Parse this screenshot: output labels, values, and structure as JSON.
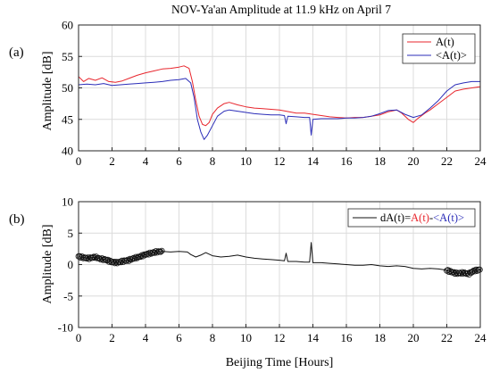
{
  "chart_data": {
    "title": "NOV-Ya'an Amplitude at 11.9 kHz on April 7",
    "xlabel": "Beijing Time [Hours]",
    "panels": [
      {
        "tag": "(a)",
        "type": "line",
        "ylabel": "Amplitude [dB]",
        "xlim": [
          0,
          24
        ],
        "ylim": [
          40,
          60
        ],
        "xticks": [
          0,
          2,
          4,
          6,
          8,
          10,
          12,
          14,
          16,
          18,
          20,
          22,
          24
        ],
        "yticks": [
          40,
          45,
          50,
          55,
          60
        ],
        "grid": true,
        "legend_position": "top-right",
        "series": [
          {
            "name": "A(t)",
            "color": "#e8262d",
            "points": [
              [
                0,
                51.8
              ],
              [
                0.3,
                51.0
              ],
              [
                0.6,
                51.5
              ],
              [
                1.0,
                51.2
              ],
              [
                1.4,
                51.6
              ],
              [
                1.8,
                51.0
              ],
              [
                2.2,
                50.9
              ],
              [
                2.6,
                51.1
              ],
              [
                3.0,
                51.5
              ],
              [
                3.5,
                52.0
              ],
              [
                4.0,
                52.4
              ],
              [
                4.5,
                52.7
              ],
              [
                5.0,
                53.0
              ],
              [
                5.5,
                53.1
              ],
              [
                6.0,
                53.3
              ],
              [
                6.3,
                53.5
              ],
              [
                6.6,
                53.1
              ],
              [
                6.8,
                51.0
              ],
              [
                7.0,
                48.0
              ],
              [
                7.2,
                45.5
              ],
              [
                7.4,
                44.2
              ],
              [
                7.6,
                44.0
              ],
              [
                7.8,
                44.5
              ],
              [
                8.0,
                45.8
              ],
              [
                8.3,
                46.8
              ],
              [
                8.7,
                47.5
              ],
              [
                9.0,
                47.7
              ],
              [
                9.5,
                47.3
              ],
              [
                10.0,
                47.0
              ],
              [
                10.5,
                46.8
              ],
              [
                11.0,
                46.7
              ],
              [
                11.5,
                46.6
              ],
              [
                12.0,
                46.5
              ],
              [
                12.4,
                46.3
              ],
              [
                13.0,
                46.0
              ],
              [
                13.5,
                46.0
              ],
              [
                14.0,
                45.8
              ],
              [
                14.5,
                45.6
              ],
              [
                15.0,
                45.4
              ],
              [
                15.5,
                45.3
              ],
              [
                16.0,
                45.2
              ],
              [
                16.5,
                45.3
              ],
              [
                17.0,
                45.3
              ],
              [
                17.5,
                45.5
              ],
              [
                18.0,
                45.7
              ],
              [
                18.5,
                46.2
              ],
              [
                19.0,
                46.5
              ],
              [
                19.3,
                46.0
              ],
              [
                19.7,
                45.0
              ],
              [
                20.0,
                44.5
              ],
              [
                20.3,
                45.2
              ],
              [
                20.7,
                46.0
              ],
              [
                21.0,
                46.5
              ],
              [
                21.5,
                47.5
              ],
              [
                22.0,
                48.5
              ],
              [
                22.5,
                49.5
              ],
              [
                23.0,
                49.8
              ],
              [
                23.5,
                50.0
              ],
              [
                24.0,
                50.2
              ]
            ]
          },
          {
            "name": "<A(t)>",
            "color": "#2b2db8",
            "points": [
              [
                0,
                50.5
              ],
              [
                0.5,
                50.6
              ],
              [
                1.0,
                50.5
              ],
              [
                1.5,
                50.7
              ],
              [
                2.0,
                50.4
              ],
              [
                2.5,
                50.5
              ],
              [
                3.0,
                50.6
              ],
              [
                3.5,
                50.7
              ],
              [
                4.0,
                50.8
              ],
              [
                4.5,
                50.9
              ],
              [
                5.0,
                51.0
              ],
              [
                5.5,
                51.2
              ],
              [
                6.0,
                51.3
              ],
              [
                6.4,
                51.5
              ],
              [
                6.7,
                50.8
              ],
              [
                6.9,
                48.5
              ],
              [
                7.1,
                45.0
              ],
              [
                7.3,
                43.0
              ],
              [
                7.5,
                41.8
              ],
              [
                7.7,
                42.5
              ],
              [
                8.0,
                44.0
              ],
              [
                8.3,
                45.5
              ],
              [
                8.7,
                46.3
              ],
              [
                9.0,
                46.5
              ],
              [
                9.5,
                46.3
              ],
              [
                10.0,
                46.1
              ],
              [
                10.5,
                45.9
              ],
              [
                11.0,
                45.8
              ],
              [
                11.5,
                45.7
              ],
              [
                12.0,
                45.7
              ],
              [
                12.3,
                45.6
              ],
              [
                12.4,
                44.3
              ],
              [
                12.5,
                45.5
              ],
              [
                13.0,
                45.4
              ],
              [
                13.5,
                45.3
              ],
              [
                13.8,
                45.3
              ],
              [
                13.9,
                42.5
              ],
              [
                14.0,
                45.0
              ],
              [
                14.5,
                45.1
              ],
              [
                15.0,
                45.1
              ],
              [
                15.5,
                45.1
              ],
              [
                16.0,
                45.2
              ],
              [
                16.5,
                45.2
              ],
              [
                17.0,
                45.3
              ],
              [
                17.5,
                45.5
              ],
              [
                18.0,
                45.9
              ],
              [
                18.5,
                46.4
              ],
              [
                19.0,
                46.5
              ],
              [
                19.5,
                45.8
              ],
              [
                20.0,
                45.3
              ],
              [
                20.5,
                45.7
              ],
              [
                21.0,
                46.8
              ],
              [
                21.5,
                48.0
              ],
              [
                22.0,
                49.5
              ],
              [
                22.5,
                50.5
              ],
              [
                23.0,
                50.8
              ],
              [
                23.5,
                51.0
              ],
              [
                24.0,
                51.0
              ]
            ]
          }
        ]
      },
      {
        "tag": "(b)",
        "type": "line",
        "ylabel": "Amplitude [dB]",
        "xlim": [
          0,
          24
        ],
        "ylim": [
          -10,
          10
        ],
        "xticks": [
          0,
          2,
          4,
          6,
          8,
          10,
          12,
          14,
          16,
          18,
          20,
          22,
          24
        ],
        "yticks": [
          -10,
          -5,
          0,
          5,
          10
        ],
        "grid": true,
        "legend_position": "top-right",
        "legend": {
          "prefix": "dA(t)=",
          "term1": "A(t)",
          "minus": "-",
          "term2": "<A(t)>",
          "prefix_color": "#000000",
          "term1_color": "#e8262d",
          "term2_color": "#2b2db8"
        },
        "series": [
          {
            "name": "dA(t)",
            "color": "#111111",
            "marker": "circle",
            "marked_ranges": [
              [
                0,
                5
              ],
              [
                22,
                24
              ]
            ],
            "points": [
              [
                0,
                1.3
              ],
              [
                0.3,
                1.1
              ],
              [
                0.6,
                1.0
              ],
              [
                1.0,
                1.2
              ],
              [
                1.3,
                0.9
              ],
              [
                1.6,
                0.8
              ],
              [
                2.0,
                0.4
              ],
              [
                2.3,
                0.3
              ],
              [
                2.6,
                0.5
              ],
              [
                3.0,
                0.7
              ],
              [
                3.3,
                1.0
              ],
              [
                3.6,
                1.2
              ],
              [
                4.0,
                1.6
              ],
              [
                4.3,
                1.8
              ],
              [
                4.6,
                2.0
              ],
              [
                5.0,
                2.1
              ],
              [
                5.5,
                2.0
              ],
              [
                6.0,
                2.1
              ],
              [
                6.5,
                2.0
              ],
              [
                6.7,
                1.6
              ],
              [
                7.0,
                1.2
              ],
              [
                7.3,
                1.5
              ],
              [
                7.6,
                1.9
              ],
              [
                8.0,
                1.4
              ],
              [
                8.5,
                1.2
              ],
              [
                9.0,
                1.3
              ],
              [
                9.5,
                1.5
              ],
              [
                10.0,
                1.2
              ],
              [
                10.5,
                1.0
              ],
              [
                11.0,
                0.9
              ],
              [
                11.5,
                0.8
              ],
              [
                12.0,
                0.7
              ],
              [
                12.3,
                0.6
              ],
              [
                12.4,
                1.8
              ],
              [
                12.5,
                0.5
              ],
              [
                13.0,
                0.5
              ],
              [
                13.5,
                0.4
              ],
              [
                13.8,
                0.4
              ],
              [
                13.9,
                3.5
              ],
              [
                14.0,
                0.3
              ],
              [
                14.5,
                0.3
              ],
              [
                15.0,
                0.2
              ],
              [
                15.5,
                0.1
              ],
              [
                16.0,
                0.0
              ],
              [
                16.5,
                -0.1
              ],
              [
                17.0,
                -0.1
              ],
              [
                17.5,
                0.0
              ],
              [
                18.0,
                -0.2
              ],
              [
                18.5,
                -0.3
              ],
              [
                19.0,
                -0.2
              ],
              [
                19.5,
                -0.3
              ],
              [
                20.0,
                -0.6
              ],
              [
                20.5,
                -0.7
              ],
              [
                21.0,
                -0.6
              ],
              [
                21.5,
                -0.7
              ],
              [
                22.0,
                -0.9
              ],
              [
                22.3,
                -1.2
              ],
              [
                22.6,
                -1.4
              ],
              [
                23.0,
                -1.3
              ],
              [
                23.3,
                -1.5
              ],
              [
                23.6,
                -1.0
              ],
              [
                24.0,
                -0.8
              ]
            ]
          }
        ]
      }
    ]
  }
}
